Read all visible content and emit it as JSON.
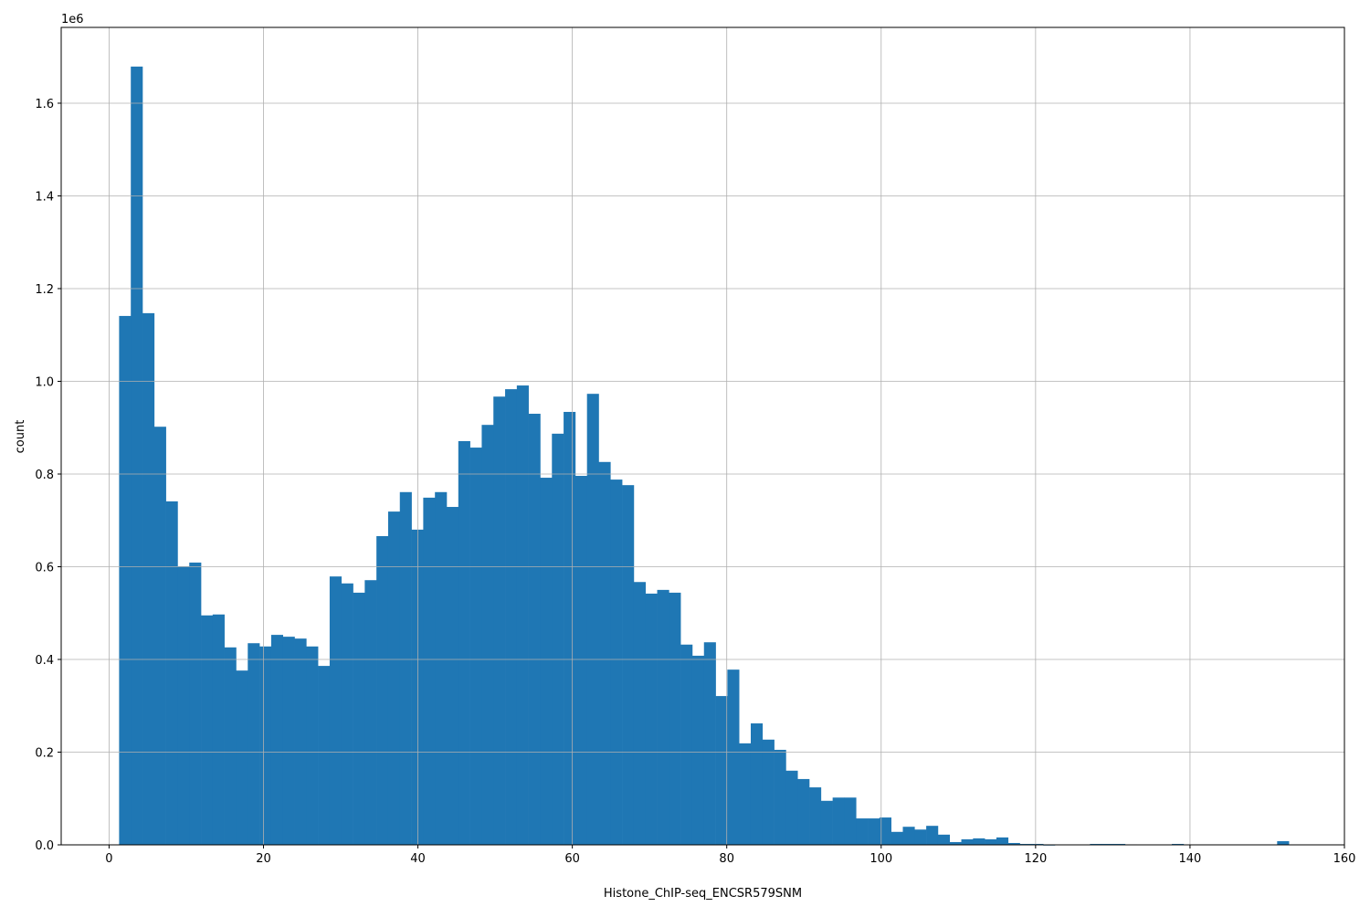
{
  "chart_data": {
    "type": "bar",
    "subtype": "histogram",
    "title": "",
    "xlabel": "Histone_ChIP-seq_ENCSR579SNM",
    "ylabel": "count",
    "y_offset_label": "1e6",
    "y_scale": 1000000,
    "xlim": [
      -6.2,
      160
    ],
    "ylim": [
      0,
      1.7635
    ],
    "x_ticks": [
      0,
      20,
      40,
      60,
      80,
      100,
      120,
      140,
      160
    ],
    "x_tick_labels": [
      "0",
      "20",
      "40",
      "60",
      "80",
      "100",
      "120",
      "140",
      "160"
    ],
    "y_ticks": [
      0,
      0.2,
      0.4,
      0.6,
      0.8,
      1.0,
      1.2,
      1.4,
      1.6
    ],
    "y_tick_labels": [
      "0.0",
      "0.2",
      "0.4",
      "0.6",
      "0.8",
      "1.0",
      "1.2",
      "1.4",
      "1.6"
    ],
    "grid": true,
    "bar_color": "#1f77b4",
    "grid_color": "#b0b0b0",
    "bin_start": 1.3,
    "bin_width": 1.515,
    "values": [
      1.141,
      1.679,
      1.147,
      0.902,
      0.741,
      0.601,
      0.609,
      0.495,
      0.497,
      0.426,
      0.376,
      0.435,
      0.428,
      0.453,
      0.449,
      0.445,
      0.428,
      0.386,
      0.579,
      0.564,
      0.544,
      0.571,
      0.666,
      0.719,
      0.761,
      0.68,
      0.749,
      0.761,
      0.729,
      0.871,
      0.857,
      0.906,
      0.967,
      0.983,
      0.991,
      0.93,
      0.792,
      0.887,
      0.934,
      0.796,
      0.973,
      0.826,
      0.788,
      0.776,
      0.567,
      0.542,
      0.55,
      0.544,
      0.432,
      0.408,
      0.437,
      0.321,
      0.378,
      0.219,
      0.262,
      0.227,
      0.205,
      0.16,
      0.142,
      0.124,
      0.095,
      0.102,
      0.102,
      0.057,
      0.057,
      0.059,
      0.028,
      0.039,
      0.033,
      0.041,
      0.022,
      0.006,
      0.012,
      0.014,
      0.012,
      0.016,
      0.004,
      0.002,
      0.002,
      0.0005,
      0,
      0,
      0,
      0.002,
      0.002,
      0.002,
      0.001,
      0,
      0,
      0,
      0.002,
      0,
      0,
      0,
      0,
      0,
      0,
      0,
      0,
      0.008
    ]
  }
}
